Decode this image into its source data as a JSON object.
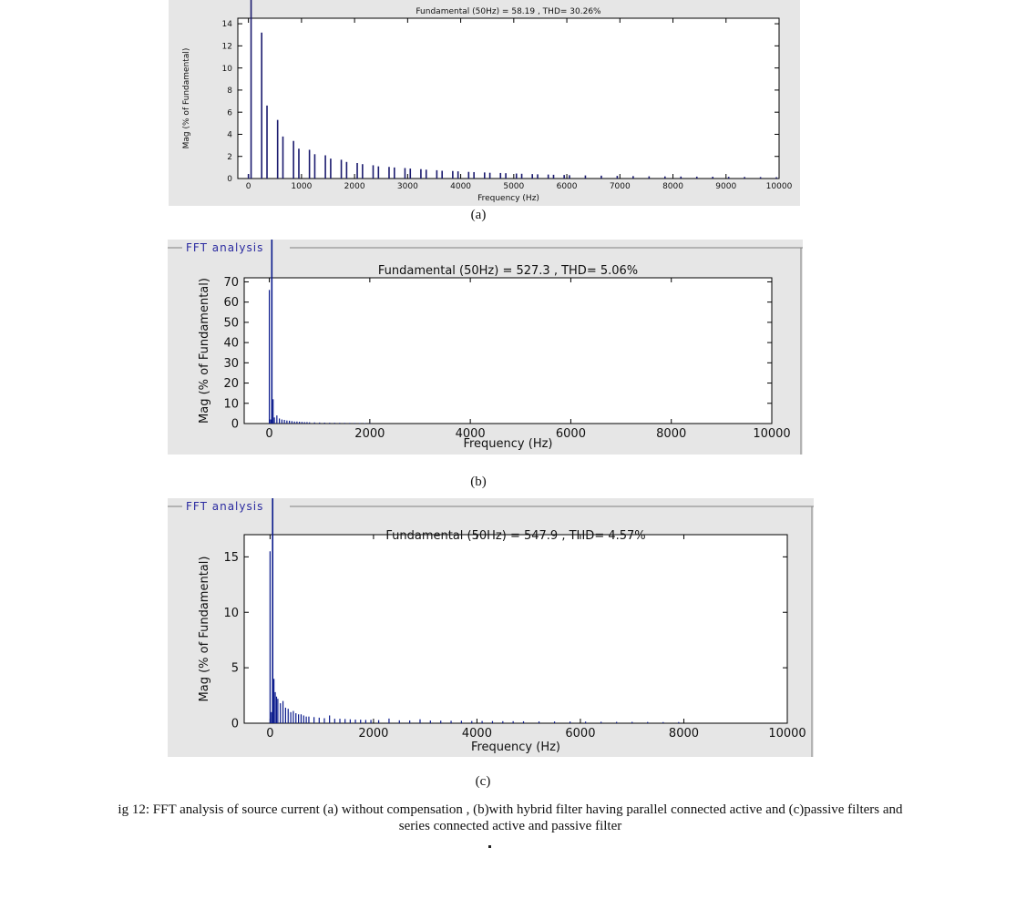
{
  "panels": [
    {
      "sublabel": "(a)",
      "chart_data": {
        "type": "bar",
        "frame_title": "",
        "title": "Fundamental (50Hz) = 58.19 , THD= 30.26%",
        "xlabel": "Frequency (Hz)",
        "ylabel": "Mag (% of Fundamental)",
        "xlim": [
          -200,
          10000
        ],
        "ylim": [
          0,
          14.5
        ],
        "xticks": [
          0,
          1000,
          2000,
          3000,
          4000,
          5000,
          6000,
          7000,
          8000,
          9000,
          10000
        ],
        "yticks": [
          0,
          2,
          4,
          6,
          8,
          10,
          12,
          14
        ],
        "grid": false,
        "bar_color": "#1a1a6e",
        "fundamental": {
          "x": 50,
          "y": 100
        },
        "x": [
          0,
          250,
          350,
          550,
          650,
          850,
          950,
          1150,
          1250,
          1450,
          1550,
          1750,
          1850,
          2050,
          2150,
          2350,
          2450,
          2650,
          2750,
          2950,
          3050,
          3250,
          3350,
          3550,
          3650,
          3850,
          3950,
          4150,
          4250,
          4450,
          4550,
          4750,
          4850,
          5050,
          5150,
          5350,
          5450,
          5650,
          5750,
          5950,
          6050,
          6350,
          6650,
          6950,
          7250,
          7550,
          7850,
          8150,
          8450,
          8750,
          9050,
          9350,
          9650,
          9950
        ],
        "values": [
          0.4,
          13.2,
          6.6,
          5.3,
          3.8,
          3.4,
          2.7,
          2.6,
          2.2,
          2.1,
          1.8,
          1.7,
          1.5,
          1.4,
          1.3,
          1.2,
          1.1,
          1.05,
          1.0,
          0.95,
          0.9,
          0.85,
          0.8,
          0.75,
          0.7,
          0.68,
          0.65,
          0.6,
          0.58,
          0.55,
          0.52,
          0.5,
          0.48,
          0.45,
          0.43,
          0.4,
          0.38,
          0.36,
          0.34,
          0.32,
          0.3,
          0.28,
          0.26,
          0.24,
          0.22,
          0.2,
          0.19,
          0.18,
          0.17,
          0.16,
          0.15,
          0.14,
          0.13,
          0.12
        ]
      }
    },
    {
      "sublabel": "(b)",
      "chart_data": {
        "type": "bar",
        "frame_title": "FFT analysis",
        "title": "Fundamental (50Hz) = 527.3 , THD= 5.06%",
        "xlabel": "Frequency (Hz)",
        "ylabel": "Mag (% of Fundamental)",
        "xlim": [
          -500,
          10000
        ],
        "ylim": [
          0,
          72
        ],
        "xticks": [
          0,
          2000,
          4000,
          6000,
          8000,
          10000
        ],
        "yticks": [
          0,
          10,
          20,
          30,
          40,
          50,
          60,
          70
        ],
        "grid": false,
        "bar_color": "#0a1a8c",
        "fundamental": {
          "x": 50,
          "y": 100
        },
        "x": [
          0,
          25,
          75,
          100,
          150,
          200,
          250,
          300,
          350,
          400,
          450,
          500,
          550,
          600,
          650,
          700,
          750,
          800,
          900,
          1000,
          1100,
          1200,
          1300,
          1400,
          1500,
          1600,
          1700,
          1800,
          1900,
          2000
        ],
        "values": [
          66,
          2,
          12,
          3,
          4,
          2.5,
          2,
          1.8,
          1.5,
          1.4,
          1.2,
          1.0,
          1.0,
          0.9,
          0.8,
          0.7,
          0.7,
          0.6,
          0.55,
          0.5,
          0.45,
          0.4,
          0.38,
          0.35,
          0.32,
          0.3,
          0.28,
          0.25,
          0.22,
          0.2
        ]
      }
    },
    {
      "sublabel": "(c)",
      "chart_data": {
        "type": "bar",
        "frame_title": "FFT analysis",
        "title": "Fundamental (50Hz) = 547.9 , THD= 4.57%",
        "xlabel": "Frequency (Hz)",
        "ylabel": "Mag (% of Fundamental)",
        "xlim": [
          -500,
          10000
        ],
        "ylim": [
          0,
          17
        ],
        "xticks": [
          0,
          2000,
          4000,
          6000,
          8000,
          10000
        ],
        "yticks": [
          0,
          5,
          10,
          15
        ],
        "grid": false,
        "bar_color": "#0a1a8c",
        "fundamental": {
          "x": 50,
          "y": 100
        },
        "x": [
          0,
          25,
          75,
          100,
          125,
          150,
          200,
          250,
          300,
          350,
          400,
          450,
          500,
          550,
          600,
          650,
          700,
          750,
          850,
          950,
          1050,
          1150,
          1250,
          1350,
          1450,
          1550,
          1650,
          1750,
          1850,
          1950,
          2100,
          2300,
          2500,
          2700,
          2900,
          3100,
          3300,
          3500,
          3700,
          3900,
          4100,
          4300,
          4500,
          4700,
          4900,
          5200,
          5500,
          5800,
          6100,
          6400,
          6700,
          7000,
          7300,
          7600,
          7900
        ],
        "values": [
          15.5,
          1.0,
          4.0,
          2.8,
          2.4,
          2.2,
          1.8,
          2.0,
          1.4,
          1.3,
          1.0,
          1.1,
          0.9,
          0.8,
          0.8,
          0.7,
          0.6,
          0.6,
          0.55,
          0.5,
          0.45,
          0.7,
          0.4,
          0.4,
          0.38,
          0.35,
          0.33,
          0.32,
          0.3,
          0.3,
          0.28,
          0.42,
          0.26,
          0.25,
          0.35,
          0.24,
          0.23,
          0.22,
          0.22,
          0.2,
          0.2,
          0.19,
          0.18,
          0.18,
          0.17,
          0.16,
          0.15,
          0.15,
          0.14,
          0.13,
          0.12,
          0.12,
          0.11,
          0.1,
          0.1
        ]
      }
    }
  ],
  "caption": {
    "line1": "ig 12: FFT analysis of source current (a) without compensation , (b)with hybrid filter having parallel connected active and (c)passive filters and",
    "line2": "series connected active and passive filter"
  }
}
